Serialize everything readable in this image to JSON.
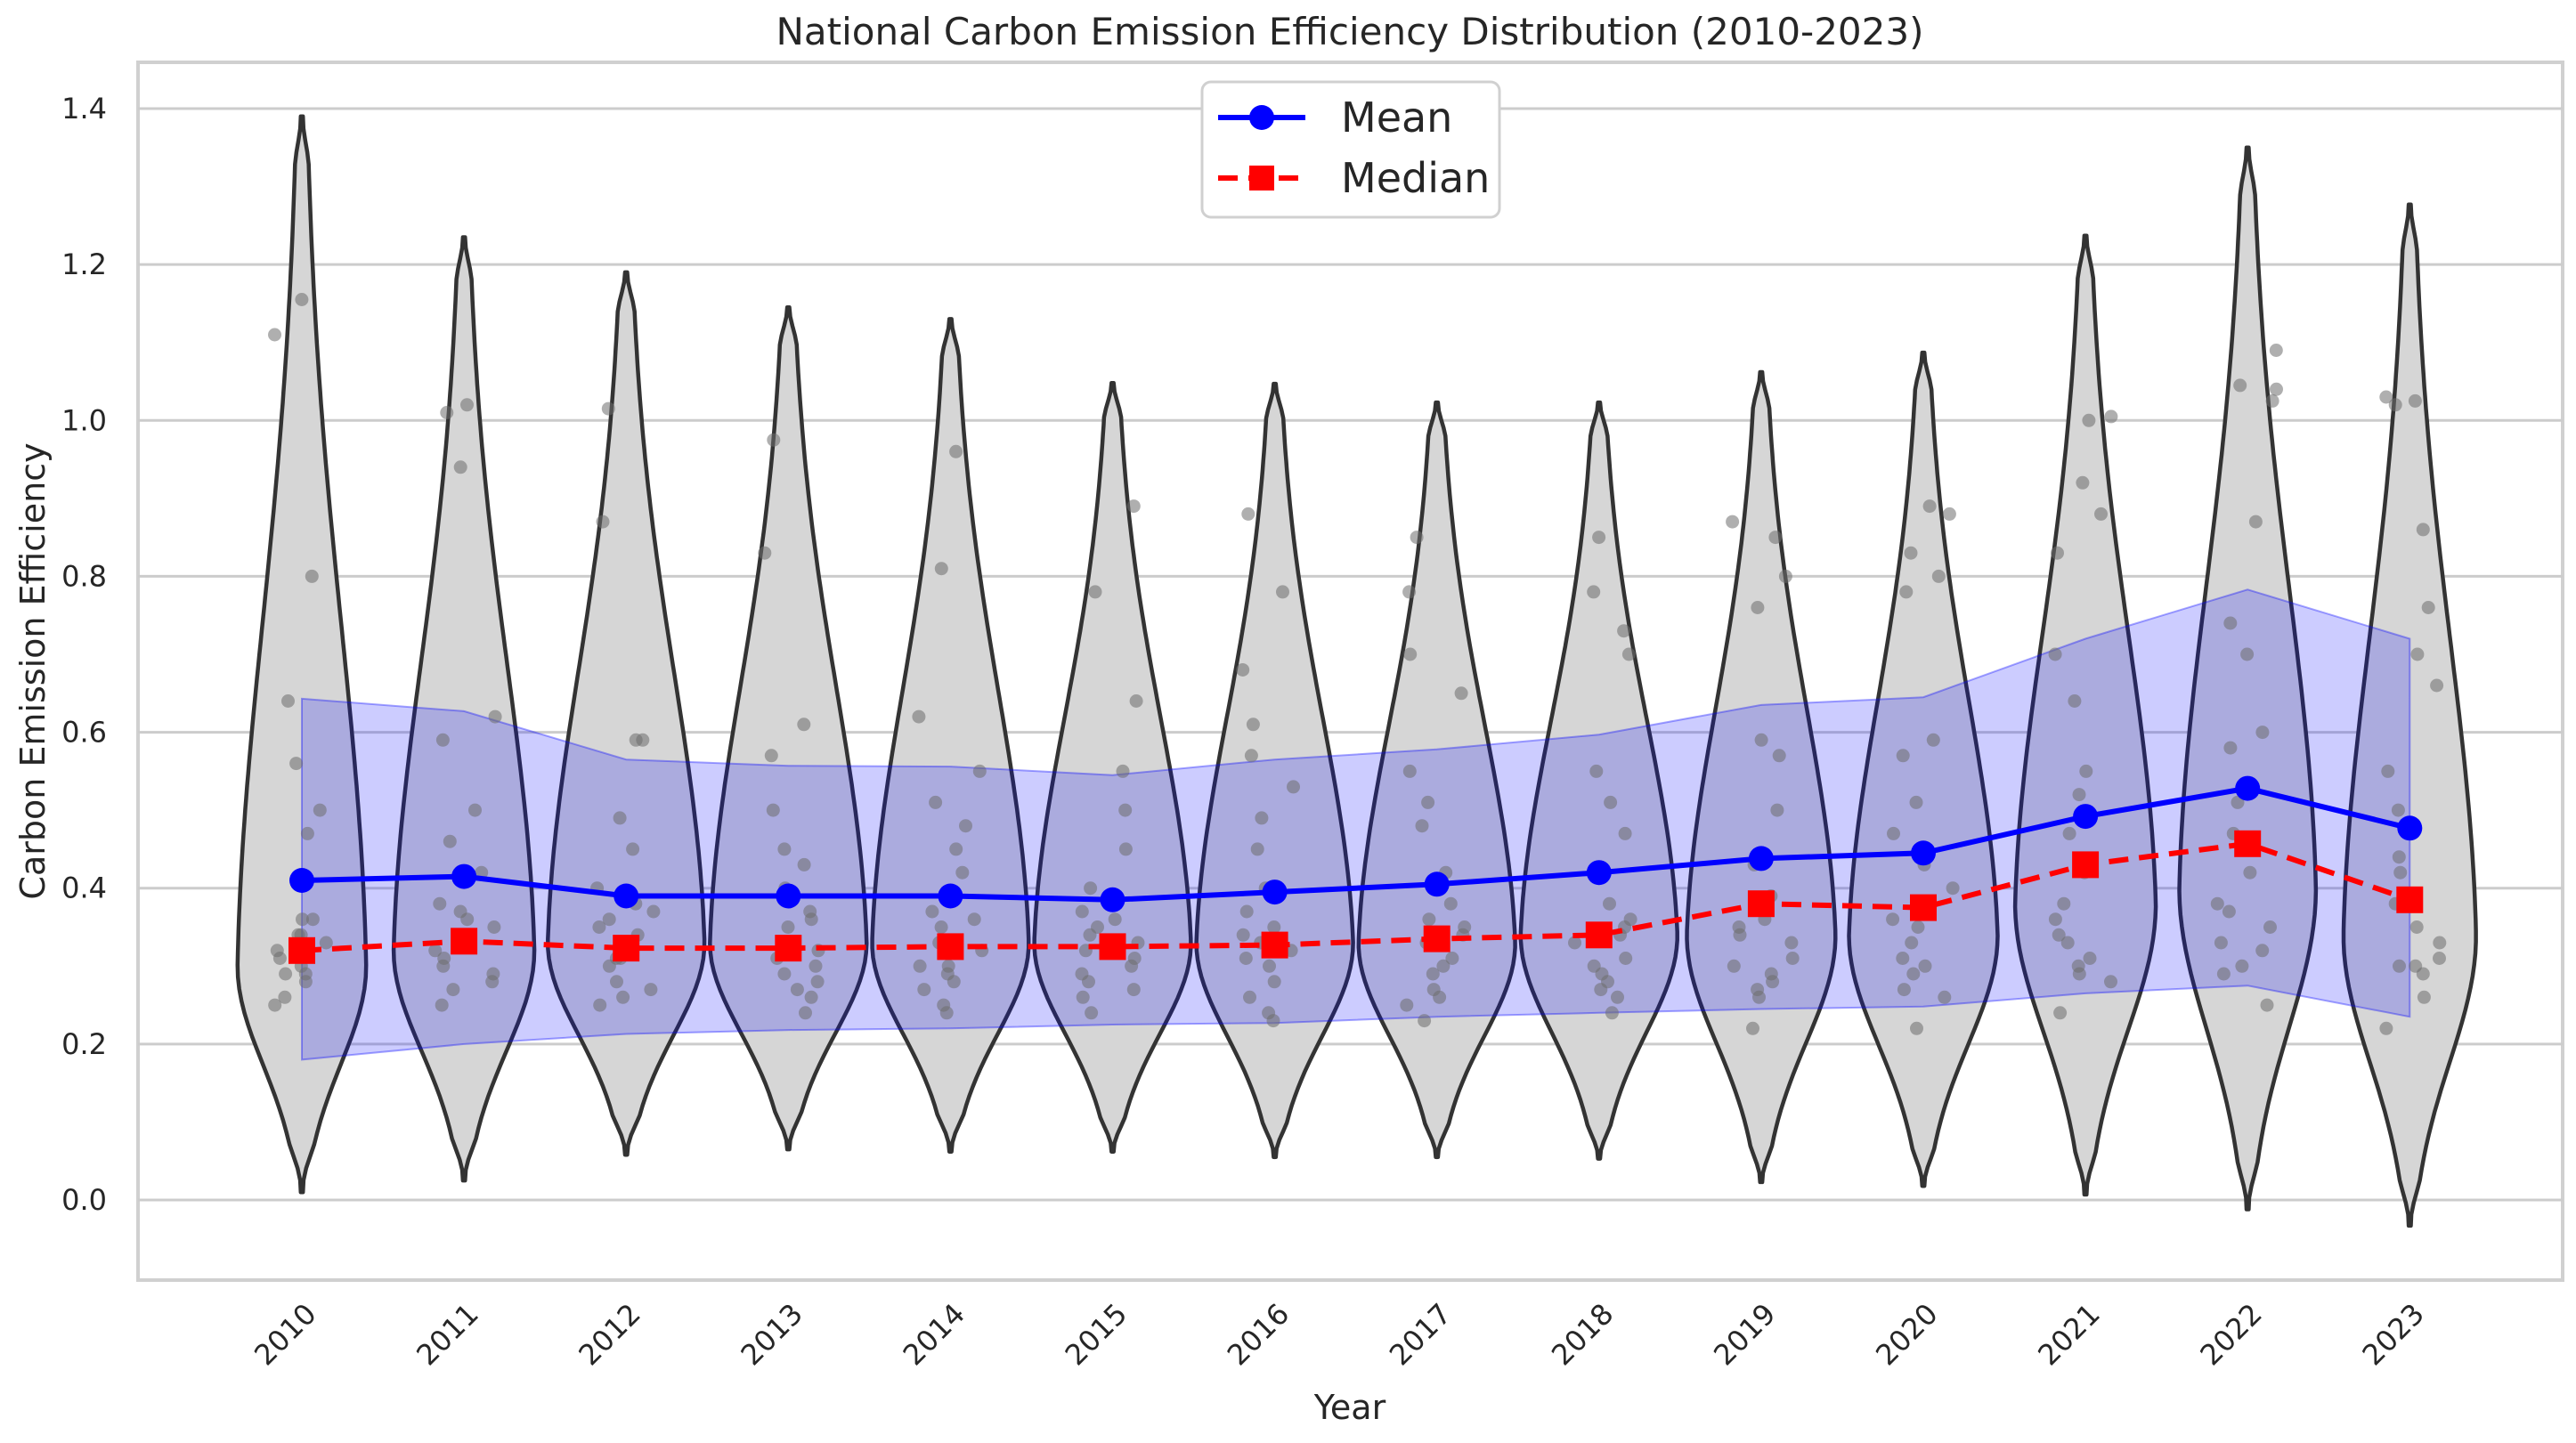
{
  "chart_data": {
    "type": "violin",
    "title": "National Carbon Emission Efficiency Distribution (2010-2023)",
    "xlabel": "Year",
    "ylabel": "Carbon Emission Efficiency",
    "categories": [
      "2010",
      "2011",
      "2012",
      "2013",
      "2014",
      "2015",
      "2016",
      "2017",
      "2018",
      "2019",
      "2020",
      "2021",
      "2022",
      "2023"
    ],
    "ylim": [
      -0.1,
      1.45
    ],
    "yticks": [
      0.0,
      0.2,
      0.4,
      0.6,
      0.8,
      1.0,
      1.2,
      1.4
    ],
    "ytick_labels": [
      "0.0",
      "0.2",
      "0.4",
      "0.6",
      "0.8",
      "1.0",
      "1.2",
      "1.4"
    ],
    "grid": true,
    "legend_position": "top-center",
    "series": [
      {
        "name": "Mean",
        "style": "solid line with circle markers",
        "color": "#0000ff",
        "values": [
          0.41,
          0.415,
          0.39,
          0.39,
          0.39,
          0.385,
          0.395,
          0.405,
          0.42,
          0.438,
          0.445,
          0.492,
          0.528,
          0.477
        ]
      },
      {
        "name": "Median",
        "style": "dashed line with square markers",
        "color": "#ff0000",
        "values": [
          0.32,
          0.332,
          0.323,
          0.323,
          0.325,
          0.325,
          0.327,
          0.335,
          0.34,
          0.38,
          0.375,
          0.43,
          0.457,
          0.385
        ]
      }
    ],
    "std_band": {
      "upper": [
        0.643,
        0.627,
        0.565,
        0.557,
        0.556,
        0.545,
        0.565,
        0.578,
        0.597,
        0.635,
        0.645,
        0.72,
        0.783,
        0.72
      ],
      "lower": [
        0.18,
        0.2,
        0.213,
        0.218,
        0.22,
        0.225,
        0.227,
        0.235,
        0.24,
        0.245,
        0.248,
        0.265,
        0.275,
        0.235
      ],
      "color": "#0000ff"
    },
    "violins": [
      {
        "min": 0.01,
        "max": 1.39,
        "mode": 0.3,
        "peak_width": 0.32
      },
      {
        "min": 0.025,
        "max": 1.235,
        "mode": 0.32,
        "peak_width": 0.35
      },
      {
        "min": 0.058,
        "max": 1.19,
        "mode": 0.33,
        "peak_width": 0.39
      },
      {
        "min": 0.065,
        "max": 1.145,
        "mode": 0.33,
        "peak_width": 0.39
      },
      {
        "min": 0.062,
        "max": 1.13,
        "mode": 0.33,
        "peak_width": 0.39
      },
      {
        "min": 0.062,
        "max": 1.048,
        "mode": 0.33,
        "peak_width": 0.39
      },
      {
        "min": 0.055,
        "max": 1.047,
        "mode": 0.33,
        "peak_width": 0.39
      },
      {
        "min": 0.055,
        "max": 1.023,
        "mode": 0.33,
        "peak_width": 0.39
      },
      {
        "min": 0.053,
        "max": 1.023,
        "mode": 0.34,
        "peak_width": 0.39
      },
      {
        "min": 0.023,
        "max": 1.062,
        "mode": 0.34,
        "peak_width": 0.37
      },
      {
        "min": 0.018,
        "max": 1.087,
        "mode": 0.34,
        "peak_width": 0.37
      },
      {
        "min": 0.007,
        "max": 1.237,
        "mode": 0.38,
        "peak_width": 0.35
      },
      {
        "min": -0.012,
        "max": 1.35,
        "mode": 0.4,
        "peak_width": 0.34
      },
      {
        "min": -0.033,
        "max": 1.277,
        "mode": 0.34,
        "peak_width": 0.33
      }
    ],
    "points": [
      [
        0.3,
        0.28,
        0.32,
        0.29,
        0.34,
        0.36,
        0.25,
        0.33,
        0.47,
        0.56,
        0.64,
        0.5,
        0.8,
        1.11,
        1.155,
        0.26,
        0.36,
        0.31,
        0.29,
        0.34
      ],
      [
        0.3,
        0.32,
        0.28,
        0.35,
        0.38,
        0.37,
        0.29,
        0.31,
        0.33,
        0.36,
        0.5,
        0.46,
        0.59,
        0.62,
        0.94,
        1.01,
        1.02,
        0.27,
        0.25,
        0.42
      ],
      [
        0.28,
        0.31,
        0.35,
        0.37,
        0.3,
        0.27,
        0.33,
        0.36,
        0.45,
        0.49,
        0.59,
        0.59,
        0.87,
        1.015,
        0.26,
        0.25,
        0.4,
        0.31,
        0.34,
        0.38
      ],
      [
        0.28,
        0.31,
        0.33,
        0.35,
        0.29,
        0.37,
        0.4,
        0.45,
        0.5,
        0.57,
        0.61,
        0.83,
        0.975,
        0.24,
        0.26,
        0.32,
        0.3,
        0.36,
        0.43,
        0.27
      ],
      [
        0.28,
        0.3,
        0.33,
        0.35,
        0.37,
        0.25,
        0.42,
        0.48,
        0.51,
        0.55,
        0.62,
        0.81,
        0.96,
        0.24,
        0.27,
        0.32,
        0.29,
        0.36,
        0.45,
        0.3
      ],
      [
        0.28,
        0.3,
        0.33,
        0.35,
        0.37,
        0.4,
        0.45,
        0.5,
        0.55,
        0.64,
        0.78,
        0.89,
        0.24,
        0.26,
        0.32,
        0.29,
        0.36,
        0.27,
        0.31,
        0.34
      ],
      [
        0.28,
        0.31,
        0.33,
        0.35,
        0.37,
        0.4,
        0.45,
        0.49,
        0.53,
        0.57,
        0.61,
        0.68,
        0.78,
        0.88,
        0.24,
        0.26,
        0.23,
        0.3,
        0.34,
        0.32
      ],
      [
        0.27,
        0.31,
        0.33,
        0.35,
        0.38,
        0.42,
        0.48,
        0.51,
        0.55,
        0.65,
        0.7,
        0.78,
        0.85,
        0.23,
        0.25,
        0.3,
        0.29,
        0.36,
        0.26,
        0.34
      ],
      [
        0.27,
        0.3,
        0.33,
        0.35,
        0.38,
        0.42,
        0.47,
        0.51,
        0.55,
        0.7,
        0.73,
        0.78,
        0.85,
        0.24,
        0.26,
        0.31,
        0.29,
        0.36,
        0.28,
        0.34
      ],
      [
        0.27,
        0.3,
        0.33,
        0.36,
        0.39,
        0.43,
        0.5,
        0.57,
        0.59,
        0.76,
        0.8,
        0.85,
        0.87,
        0.22,
        0.26,
        0.31,
        0.29,
        0.35,
        0.28,
        0.34
      ],
      [
        0.27,
        0.3,
        0.33,
        0.36,
        0.4,
        0.43,
        0.47,
        0.51,
        0.57,
        0.59,
        0.78,
        0.8,
        0.83,
        0.88,
        0.89,
        0.22,
        0.26,
        0.31,
        0.29,
        0.35
      ],
      [
        0.28,
        0.31,
        0.34,
        0.38,
        0.42,
        0.47,
        0.52,
        0.55,
        0.64,
        0.7,
        0.83,
        0.88,
        0.92,
        1.0,
        1.005,
        0.24,
        0.29,
        0.33,
        0.3,
        0.36
      ],
      [
        0.29,
        0.32,
        0.35,
        0.38,
        0.42,
        0.47,
        0.51,
        0.58,
        0.6,
        0.7,
        0.74,
        0.87,
        1.025,
        1.04,
        1.045,
        1.09,
        0.25,
        0.3,
        0.33,
        0.37
      ],
      [
        0.22,
        0.26,
        0.3,
        0.33,
        0.38,
        0.42,
        0.5,
        0.55,
        0.66,
        0.7,
        0.76,
        0.86,
        1.02,
        1.025,
        1.03,
        0.29,
        0.31,
        0.35,
        0.44,
        0.3
      ]
    ]
  }
}
